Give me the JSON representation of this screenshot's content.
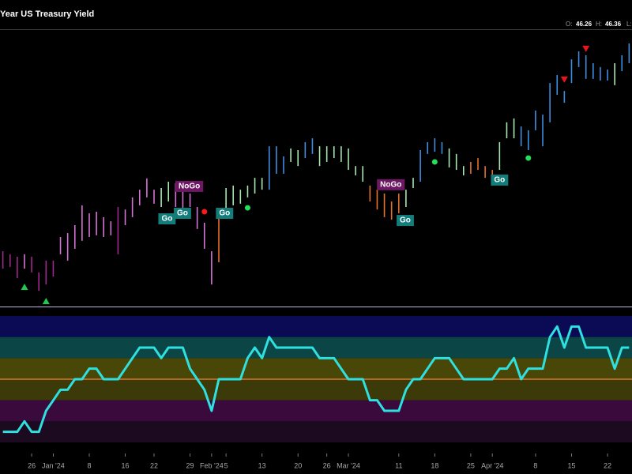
{
  "header": {
    "title": "Year US Treasury Yield",
    "readout": [
      {
        "label": "O:",
        "value": 46.26
      },
      {
        "label": "H:",
        "value": 46.36
      },
      {
        "label": "L:"
      }
    ]
  },
  "chart_data": [
    {
      "type": "hilo",
      "xlim": [
        -0.4,
        87.4
      ],
      "ylim": [
        37,
        47
      ],
      "high": [
        39.01,
        38.9,
        38.81,
        38.9,
        38.81,
        38.24,
        38.67,
        38.67,
        39.53,
        39.67,
        39.96,
        40.68,
        40.39,
        40.45,
        40.25,
        40.1,
        40.62,
        40.53,
        40.97,
        41.25,
        41.66,
        41.25,
        41.31,
        41.54,
        41.48,
        41.31,
        41.11,
        40.62,
        40.05,
        39.01,
        40.39,
        41.31,
        41.4,
        41.25,
        41.4,
        41.68,
        41.68,
        42.83,
        42.83,
        42.46,
        42.75,
        42.69,
        42.98,
        43.12,
        42.83,
        42.83,
        42.83,
        42.83,
        42.75,
        42.11,
        42.11,
        41.4,
        41.25,
        41.11,
        40.82,
        41.11,
        41.25,
        41.68,
        42.69,
        42.98,
        43.12,
        42.98,
        42.75,
        42.55,
        42.11,
        42.26,
        42.4,
        42.11,
        41.97,
        42.98,
        43.7,
        43.84,
        43.55,
        43.41,
        44.13,
        43.98,
        45.13,
        45.42,
        44.84,
        45.99,
        46.28,
        46.14,
        45.85,
        45.71,
        45.62,
        45.85,
        46.14,
        46.57
      ],
      "low": [
        38.38,
        38.44,
        38.03,
        38.38,
        38.24,
        37.57,
        37.8,
        38.09,
        38.9,
        38.67,
        39.1,
        39.39,
        39.53,
        39.59,
        39.53,
        39.59,
        38.9,
        39.96,
        40.25,
        40.68,
        40.97,
        40.74,
        40.62,
        40.82,
        40.62,
        40.45,
        40.62,
        39.82,
        39.1,
        37.8,
        38.61,
        40.33,
        40.68,
        40.74,
        40.97,
        41.11,
        41.25,
        41.25,
        41.83,
        41.83,
        42.26,
        42.11,
        42.4,
        42.55,
        42.11,
        42.26,
        42.4,
        42.26,
        41.97,
        41.77,
        41.54,
        40.82,
        40.53,
        40.25,
        40.16,
        40.39,
        40.62,
        41.31,
        41.54,
        42.55,
        42.63,
        42.55,
        42.06,
        41.97,
        41.77,
        41.83,
        41.97,
        41.68,
        41.48,
        41.97,
        43.12,
        43.12,
        42.83,
        42.69,
        43.41,
        42.83,
        43.7,
        44.7,
        44.41,
        45.13,
        45.71,
        45.28,
        45.28,
        45.22,
        45.22,
        45.05,
        45.56,
        45.85
      ],
      "colors": [
        "#a0288f",
        "#a0288f",
        "#a0288f",
        "#d772d6",
        "#a0288f",
        "#a0288f",
        "#a0288f",
        "#a0288f",
        "#d772d6",
        "#d772d6",
        "#d772d6",
        "#d772d6",
        "#d772d6",
        "#d772d6",
        "#d772d6",
        "#d772d6",
        "#a0288f",
        "#d772d6",
        "#d772d6",
        "#d772d6",
        "#d772d6",
        "#d772d6",
        "#a6e8b0",
        "#a6e8b0",
        "#d772d6",
        "#d772d6",
        "#d772d6",
        "#d772d6",
        "#d772d6",
        "#d772d6",
        "#e3702e",
        "#a6e8b0",
        "#a6e8b0",
        "#a6e8b0",
        "#a6e8b0",
        "#a6e8b0",
        "#a6e8b0",
        "#3e8ee0",
        "#3e8ee0",
        "#3e8ee0",
        "#a6e8b0",
        "#a6e8b0",
        "#3e8ee0",
        "#3e8ee0",
        "#a6e8b0",
        "#a6e8b0",
        "#a6e8b0",
        "#a6e8b0",
        "#a6e8b0",
        "#a6e8b0",
        "#a6e8b0",
        "#e3702e",
        "#e3702e",
        "#e3702e",
        "#e3702e",
        "#e3702e",
        "#a6e8b0",
        "#a6e8b0",
        "#3e8ee0",
        "#3e8ee0",
        "#3e8ee0",
        "#3e8ee0",
        "#a6e8b0",
        "#a6e8b0",
        "#a6e8b0",
        "#e3702e",
        "#e3702e",
        "#e3702e",
        "#e3702e",
        "#a6e8b0",
        "#a6e8b0",
        "#a6e8b0",
        "#3e8ee0",
        "#3e8ee0",
        "#3e8ee0",
        "#3e8ee0",
        "#3e8ee0",
        "#3e8ee0",
        "#3e8ee0",
        "#3e8ee0",
        "#3e8ee0",
        "#3e8ee0",
        "#3e8ee0",
        "#3e8ee0",
        "#3e8ee0",
        "#a6e8b0",
        "#3e8ee0",
        "#3e8ee0"
      ],
      "signals": [
        {
          "shape": "triangle-up",
          "color": "#1fc84f",
          "x": 3,
          "y": 37.72
        },
        {
          "shape": "triangle-up",
          "color": "#1fc84f",
          "x": 6,
          "y": 37.2
        },
        {
          "shape": "triangle-down",
          "color": "#e8151b",
          "x": 78,
          "y": 45.25
        },
        {
          "shape": "triangle-down",
          "color": "#e8151b",
          "x": 81,
          "y": 46.37
        },
        {
          "shape": "dot",
          "color": "#ff1a1a",
          "x": 28,
          "y": 40.45
        },
        {
          "shape": "dot",
          "color": "#22e05a",
          "x": 31,
          "y": 40.39
        },
        {
          "shape": "dot",
          "color": "#22e05a",
          "x": 34,
          "y": 40.59
        },
        {
          "shape": "dot",
          "color": "#22e05a",
          "x": 60,
          "y": 42.26
        },
        {
          "shape": "dot",
          "color": "#22e05a",
          "x": 69,
          "y": 41.6
        },
        {
          "shape": "dot",
          "color": "#22e05a",
          "x": 73,
          "y": 42.4
        }
      ],
      "annotations": [
        {
          "text": "Go",
          "color": "#127d7b",
          "x": 22.8,
          "y": 40.19
        },
        {
          "text": "Go",
          "color": "#127d7b",
          "x": 24.95,
          "y": 40.39
        },
        {
          "text": "NoGo",
          "color": "#6e1764",
          "x": 25.9,
          "y": 41.37
        },
        {
          "text": "Go",
          "color": "#127d7b",
          "x": 30.8,
          "y": 40.39
        },
        {
          "text": "NoGo",
          "color": "#6e1764",
          "x": 53.9,
          "y": 41.43
        },
        {
          "text": "Go",
          "color": "#127d7b",
          "x": 55.9,
          "y": 40.13
        },
        {
          "text": "Go",
          "color": "#127d7b",
          "x": 69,
          "y": 41.6
        }
      ]
    },
    {
      "type": "oscillator",
      "xlim": [
        -0.4,
        87.4
      ],
      "ylim": [
        -6,
        6
      ],
      "color": "#2ee0e0",
      "baseline": 0,
      "baseline_color": "#d9772a",
      "bands": [
        {
          "from": 4,
          "to": 6,
          "color": "#0b0b55"
        },
        {
          "from": 2,
          "to": 4,
          "color": "#0b4545"
        },
        {
          "from": 0,
          "to": 2,
          "color": "#494708"
        },
        {
          "from": -2,
          "to": 0,
          "color": "#3b3a08"
        },
        {
          "from": -4,
          "to": -2,
          "color": "#3a0a3c"
        },
        {
          "from": -6,
          "to": -4,
          "color": "#1c0a20"
        }
      ],
      "values": [
        -5,
        -5,
        -5,
        -4,
        -5,
        -5,
        -3,
        -2,
        -1,
        -1,
        0,
        0,
        1,
        1,
        0,
        0,
        0,
        1,
        2,
        3,
        3,
        3,
        2,
        3,
        3,
        3,
        1,
        0,
        -1,
        -3,
        0,
        0,
        0,
        0,
        2,
        3,
        2,
        4,
        3,
        3,
        3,
        3,
        3,
        3,
        2,
        2,
        2,
        1,
        0,
        0,
        0,
        -2,
        -2,
        -3,
        -3,
        -3,
        -1,
        0,
        0,
        1,
        2,
        2,
        2,
        1,
        0,
        0,
        0,
        0,
        0,
        1,
        1,
        2,
        0,
        1,
        1,
        1,
        4,
        5,
        3,
        5,
        5,
        3,
        3,
        3,
        3,
        1,
        3,
        3
      ],
      "xticks": [
        {
          "value": 4,
          "label": "26"
        },
        {
          "value": 7,
          "label": "Jan '24"
        },
        {
          "value": 12,
          "label": "8"
        },
        {
          "value": 17,
          "label": "16"
        },
        {
          "value": 21,
          "label": "22"
        },
        {
          "value": 26,
          "label": "29"
        },
        {
          "value": 29,
          "label": "Feb '24"
        },
        {
          "value": 31,
          "label": "5"
        },
        {
          "value": 36,
          "label": "13"
        },
        {
          "value": 41,
          "label": "20"
        },
        {
          "value": 45,
          "label": "26"
        },
        {
          "value": 48,
          "label": "Mar '24"
        },
        {
          "value": 55,
          "label": "11"
        },
        {
          "value": 60,
          "label": "18"
        },
        {
          "value": 65,
          "label": "25"
        },
        {
          "value": 68,
          "label": "Apr '24"
        },
        {
          "value": 74,
          "label": "8"
        },
        {
          "value": 79,
          "label": "15"
        },
        {
          "value": 84,
          "label": "22"
        }
      ]
    }
  ]
}
